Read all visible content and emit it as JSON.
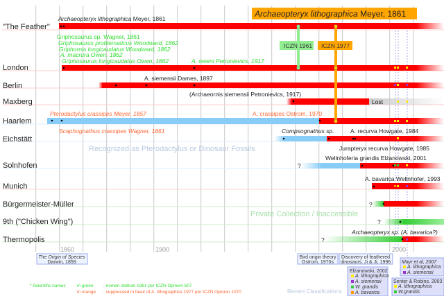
{
  "header": {
    "title_italic": "Archaeopteryx lithographica",
    "title_rest": " Meyer, 1861",
    "color": "#ffa500"
  },
  "rows": [
    {
      "label": "\"The Feather\""
    },
    {
      "label": "London"
    },
    {
      "label": "Berlin"
    },
    {
      "label": "Maxberg"
    },
    {
      "label": "Haarlem"
    },
    {
      "label": "Eichstätt"
    },
    {
      "label": "Solnhofen"
    },
    {
      "label": "Munich"
    },
    {
      "label": "Bürgermeister-Müller"
    },
    {
      "label": "9th (\"Chicken Wing\")"
    },
    {
      "label": "Thermopolis"
    }
  ],
  "names": {
    "feather_it": "Archaeopteryx lithographica",
    "feather_rest": " Meyer, 1861",
    "g1": "Griphosaurus sp. Wagner, 1861",
    "g2": "Griphosaurus problematicus Woodward, 1862",
    "g3": "Griphornis longicaudatus Woodward, 1862",
    "g4": "A. macrura Owen, 1862",
    "g5": "Griphosaurus longicaudatus Owen, 1862",
    "g6": "A. oweni Petronievics, 1917",
    "berlin1": "A. siemensii Dames, 1897",
    "berlin2": "(Archaeornis siemensii Petronievics, 1917)",
    "lost": "Lost",
    "h1": "Pterodactylus crassipes Meyer, 1857",
    "h2": "Scaphognathus crassipes Wagner, 1861",
    "h3": "A. crassipes Ostrom, 1970",
    "e1": "Compsognathus sp.",
    "e2": "A. recurva Howgate, 1984",
    "e3": "Jurapteryx recurva Howgate, 1985",
    "s1": "Wellnhoferia grandis Elżanowski, 2001",
    "m1": "A. bavarica Wellnhofer, 1993",
    "t1": "Archaeopteryx sp. (A. bavarica?)",
    "unknown": "?"
  },
  "badges": {
    "iczn1961": "ICZN 1961",
    "iczn1977": "ICZN 1977",
    "green": "#90ee90",
    "orange": "#ffa500"
  },
  "regions": {
    "recognized": "Recognized as Pterodactylus or Dinosaur Fossils",
    "private": "Private Collection / Inaccessible"
  },
  "axis": {
    "ticks": [
      "1860",
      "1900",
      "2000"
    ]
  },
  "events": {
    "darwin1": "The Origin of Species",
    "darwin2": "Darwin, 1859",
    "ostrom1": "Bird origin theory",
    "ostrom2": "Ostrom, 1970s",
    "ji1": "Discovery of feathered",
    "ji2": "dinosaurs. Ji & Ji, 1996"
  },
  "classifications": {
    "label": "Recent Classifications",
    "elz": {
      "title": "Elżanowski, 2002",
      "items": [
        "A. lithographica",
        "A. siemensii",
        "W. grandis",
        "A. bavarica"
      ]
    },
    "senter": {
      "title": "Senter & Robins, 2003",
      "items": [
        "A. lithographica",
        "W.grandis"
      ]
    },
    "mayr": {
      "title": "Mayr et al, 2007",
      "items": [
        "A. lithographica",
        "A. siemensii"
      ]
    },
    "colors": {
      "lithographica": "#ffee00",
      "siemensii": "#9933cc",
      "grandis": "#33cc33",
      "bavarica": "#ff9900"
    }
  },
  "legend": {
    "star": "* Scientific names",
    "green_label": "in green",
    "green_text": ": nomen oblitum 1961 per ICZN Opinion 607",
    "orange_label": "in orange",
    "orange_text": ": suppressed in favor of A. lithographica 1977 per ICZN Opinion 1070"
  }
}
